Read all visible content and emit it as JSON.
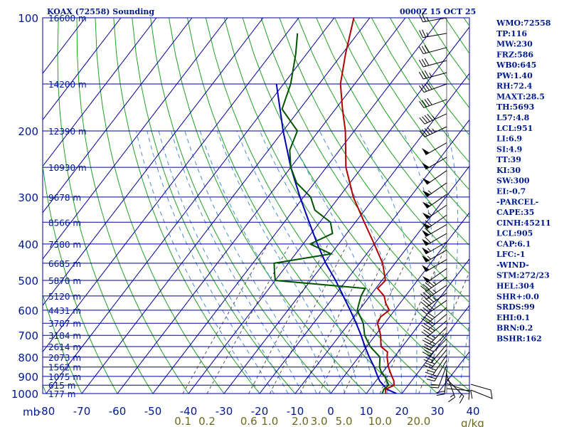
{
  "header": {
    "title": "KOAX (72558) Sounding",
    "time": "0000Z 15 OCT 25"
  },
  "colors": {
    "grid": "#0000a0",
    "isotherm_text": "#001a8c",
    "dry_adiabat": "#22a022",
    "moist_adiabat": "#4a8fd0",
    "mixing_ratio": "#555555",
    "temperature": "#b00000",
    "dewpoint": "#005500",
    "parcel": "#0000b0",
    "mixing_text": "#6b6b1e"
  },
  "chart_data": {
    "type": "skew-t",
    "pressure_axis_title": "mb",
    "pressure_levels": [
      100,
      200,
      300,
      400,
      500,
      600,
      700,
      800,
      900,
      1000
    ],
    "pressure_labels": [
      "100",
      "200",
      "300",
      "400",
      "500",
      "600",
      "700",
      "800",
      "900",
      "1000"
    ],
    "isobar_extra": [
      150,
      250,
      350,
      450,
      550,
      650,
      750,
      850,
      950
    ],
    "temperature_ticks": [
      -80,
      -70,
      -60,
      -50,
      -40,
      -30,
      -20,
      -10,
      0,
      10,
      20,
      30,
      40
    ],
    "temperature_labels": [
      "-80",
      "-70",
      "-60",
      "-50",
      "-40",
      "-30",
      "-20",
      "-10",
      "0",
      "10",
      "20",
      "30",
      "40"
    ],
    "mixing_ratio_ticks": [
      {
        "label": "0.1",
        "value": 0.1
      },
      {
        "label": "0.2",
        "value": 0.2
      },
      {
        "label": "0.6",
        "value": 0.6
      },
      {
        "label": "1.0",
        "value": 1.0
      },
      {
        "label": "2.0",
        "value": 2.0
      },
      {
        "label": "3.0",
        "value": 3.0
      },
      {
        "label": "5.0",
        "value": 5.0
      },
      {
        "label": "10.0",
        "value": 10.0
      },
      {
        "label": "20.0",
        "value": 20.0
      }
    ],
    "mixing_ratio_unit": "g/kg",
    "height_labels": [
      {
        "p": 100,
        "text": "16600 m"
      },
      {
        "p": 150,
        "text": "14200 m"
      },
      {
        "p": 200,
        "text": "12390 m"
      },
      {
        "p": 250,
        "text": "10930 m"
      },
      {
        "p": 300,
        "text": "9678 m"
      },
      {
        "p": 350,
        "text": "8566 m"
      },
      {
        "p": 400,
        "text": "7580 m"
      },
      {
        "p": 450,
        "text": "6685 m"
      },
      {
        "p": 500,
        "text": "5870 m"
      },
      {
        "p": 550,
        "text": "5120 m"
      },
      {
        "p": 600,
        "text": "4431 m"
      },
      {
        "p": 650,
        "text": "3787 m"
      },
      {
        "p": 700,
        "text": "3184 m"
      },
      {
        "p": 750,
        "text": "2614 m"
      },
      {
        "p": 800,
        "text": "2073 m"
      },
      {
        "p": 850,
        "text": "1562 m"
      },
      {
        "p": 900,
        "text": "1075 m"
      },
      {
        "p": 950,
        "text": "615 m"
      },
      {
        "p": 1000,
        "text": "177 m"
      }
    ],
    "temperature_profile": [
      [
        1000,
        15.5
      ],
      [
        975,
        14.5
      ],
      [
        950,
        16.0
      ],
      [
        925,
        15.0
      ],
      [
        900,
        13.5
      ],
      [
        875,
        12.0
      ],
      [
        850,
        10.5
      ],
      [
        800,
        8.0
      ],
      [
        775,
        7.0
      ],
      [
        750,
        4.0
      ],
      [
        700,
        1.5
      ],
      [
        650,
        -2.0
      ],
      [
        625,
        -2.5
      ],
      [
        600,
        -1.5
      ],
      [
        575,
        -4.0
      ],
      [
        550,
        -6.0
      ],
      [
        525,
        -9.5
      ],
      [
        500,
        -9.0
      ],
      [
        450,
        -13.5
      ],
      [
        400,
        -20.0
      ],
      [
        350,
        -27.5
      ],
      [
        300,
        -36.0
      ],
      [
        250,
        -44.5
      ],
      [
        200,
        -52.5
      ],
      [
        175,
        -58.0
      ],
      [
        150,
        -64.0
      ],
      [
        125,
        -69.0
      ],
      [
        100,
        -74.5
      ]
    ],
    "dewpoint_profile": [
      [
        1000,
        14.5
      ],
      [
        975,
        14.0
      ],
      [
        950,
        14.5
      ],
      [
        925,
        13.0
      ],
      [
        900,
        11.5
      ],
      [
        875,
        9.5
      ],
      [
        850,
        8.0
      ],
      [
        800,
        6.0
      ],
      [
        750,
        1.0
      ],
      [
        700,
        -3.0
      ],
      [
        650,
        -6.0
      ],
      [
        600,
        -10.5
      ],
      [
        575,
        -11.5
      ],
      [
        550,
        -12.5
      ],
      [
        525,
        -13.0
      ],
      [
        500,
        -40.0
      ],
      [
        475,
        -42.0
      ],
      [
        450,
        -44.0
      ],
      [
        425,
        -30.0
      ],
      [
        400,
        -38.0
      ],
      [
        375,
        -34.0
      ],
      [
        350,
        -37.0
      ],
      [
        325,
        -44.0
      ],
      [
        300,
        -48.0
      ],
      [
        275,
        -55.0
      ],
      [
        250,
        -60.0
      ],
      [
        225,
        -64.0
      ],
      [
        200,
        -66.0
      ],
      [
        175,
        -75.0
      ],
      [
        150,
        -78.0
      ],
      [
        125,
        -83.0
      ],
      [
        110,
        -87.0
      ]
    ],
    "parcel_profile": [
      [
        1000,
        18.5
      ],
      [
        975,
        15.0
      ],
      [
        950,
        13.0
      ],
      [
        925,
        11.0
      ],
      [
        900,
        9.5
      ],
      [
        875,
        8.0
      ],
      [
        850,
        6.5
      ],
      [
        800,
        3.0
      ],
      [
        750,
        -0.5
      ],
      [
        700,
        -4.0
      ],
      [
        650,
        -8.0
      ],
      [
        600,
        -12.5
      ],
      [
        550,
        -17.5
      ],
      [
        500,
        -23.0
      ],
      [
        450,
        -29.5
      ],
      [
        400,
        -36.0
      ],
      [
        350,
        -43.0
      ],
      [
        300,
        -51.0
      ],
      [
        250,
        -60.0
      ],
      [
        200,
        -70.0
      ],
      [
        150,
        -82.0
      ]
    ],
    "wind_barbs": [
      {
        "p": 970,
        "dir": 95,
        "spd": 10
      },
      {
        "p": 940,
        "dir": 110,
        "spd": 10
      },
      {
        "p": 915,
        "dir": 135,
        "spd": 15
      },
      {
        "p": 890,
        "dir": 160,
        "spd": 15
      },
      {
        "p": 865,
        "dir": 185,
        "spd": 20
      },
      {
        "p": 840,
        "dir": 200,
        "spd": 20
      },
      {
        "p": 815,
        "dir": 210,
        "spd": 25
      },
      {
        "p": 790,
        "dir": 215,
        "spd": 25
      },
      {
        "p": 765,
        "dir": 220,
        "spd": 25
      },
      {
        "p": 740,
        "dir": 220,
        "spd": 30
      },
      {
        "p": 715,
        "dir": 225,
        "spd": 30
      },
      {
        "p": 690,
        "dir": 225,
        "spd": 35
      },
      {
        "p": 665,
        "dir": 225,
        "spd": 35
      },
      {
        "p": 640,
        "dir": 230,
        "spd": 35
      },
      {
        "p": 615,
        "dir": 230,
        "spd": 40
      },
      {
        "p": 590,
        "dir": 230,
        "spd": 40
      },
      {
        "p": 565,
        "dir": 235,
        "spd": 40
      },
      {
        "p": 540,
        "dir": 235,
        "spd": 45
      },
      {
        "p": 515,
        "dir": 235,
        "spd": 45
      },
      {
        "p": 490,
        "dir": 235,
        "spd": 45
      },
      {
        "p": 465,
        "dir": 235,
        "spd": 50
      },
      {
        "p": 440,
        "dir": 240,
        "spd": 50
      },
      {
        "p": 415,
        "dir": 240,
        "spd": 55
      },
      {
        "p": 395,
        "dir": 240,
        "spd": 55
      },
      {
        "p": 375,
        "dir": 240,
        "spd": 60
      },
      {
        "p": 355,
        "dir": 240,
        "spd": 60
      },
      {
        "p": 335,
        "dir": 235,
        "spd": 60
      },
      {
        "p": 315,
        "dir": 235,
        "spd": 55
      },
      {
        "p": 295,
        "dir": 235,
        "spd": 55
      },
      {
        "p": 275,
        "dir": 235,
        "spd": 55
      },
      {
        "p": 255,
        "dir": 235,
        "spd": 50
      },
      {
        "p": 235,
        "dir": 240,
        "spd": 50
      },
      {
        "p": 215,
        "dir": 240,
        "spd": 50
      },
      {
        "p": 195,
        "dir": 245,
        "spd": 45
      },
      {
        "p": 180,
        "dir": 245,
        "spd": 45
      },
      {
        "p": 165,
        "dir": 250,
        "spd": 40
      },
      {
        "p": 150,
        "dir": 250,
        "spd": 40
      },
      {
        "p": 140,
        "dir": 255,
        "spd": 35
      },
      {
        "p": 130,
        "dir": 255,
        "spd": 30
      },
      {
        "p": 120,
        "dir": 255,
        "spd": 30
      },
      {
        "p": 110,
        "dir": 260,
        "spd": 25
      },
      {
        "p": 100,
        "dir": 260,
        "spd": 25
      }
    ]
  },
  "indices": [
    "WMO:72558",
    "TP:116",
    "MW:230",
    "FRZ:586",
    "WB0:645",
    "PW:1.40",
    "RH:72.4",
    "MAXT:28.5",
    "TH:5693",
    "L57:4.8",
    "LCL:951",
    "LI:6.9",
    "SI:4.9",
    "TT:39",
    "KI:30",
    "SW:300",
    "EI:-0.7",
    "-PARCEL-",
    "CAPE:35",
    "CINH:45211",
    "LCL:905",
    "CAP:6.1",
    "LFC:-1",
    "-WIND-",
    "STM:272/23",
    "HEL:304",
    "SHR+:0.0",
    "SRDS:99",
    "EHI:0.1",
    "BRN:0.2",
    "BSHR:162"
  ]
}
